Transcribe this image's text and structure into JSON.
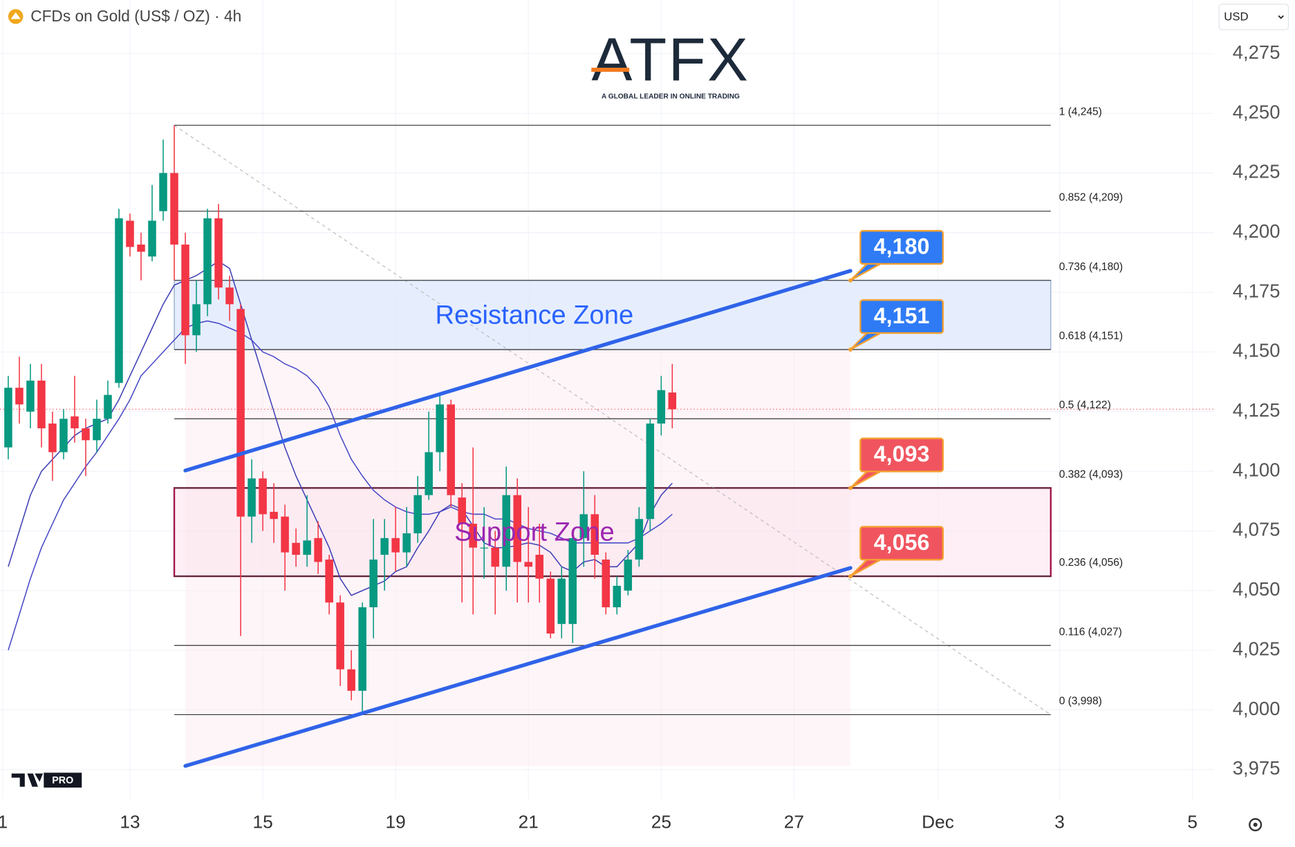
{
  "chart_data": {
    "type": "candlestick",
    "title": "CFDs on Gold (US$ / OZ) · 4h",
    "currency": "USD",
    "logo": {
      "name": "ATFX",
      "tagline": "A GLOBAL LEADER IN ONLINE TRADING"
    },
    "badge": "PRO",
    "up_color": "#089981",
    "down_color": "#f23645",
    "open": [
      4110,
      4135,
      4125,
      4138,
      4120,
      4108,
      4123,
      4118,
      4113,
      4122,
      4137,
      4205,
      4195,
      4190,
      4209,
      4225,
      4195,
      4157,
      4170,
      4206,
      4177,
      4168,
      4081,
      4097,
      4083,
      4081,
      4070,
      4065,
      4072,
      4063,
      4045,
      4017,
      4008,
      4043,
      4065,
      4072,
      4066,
      4074,
      4090,
      4108,
      4128,
      4089,
      4078,
      4068,
      4068,
      4060,
      4090,
      4062,
      4065,
      4055,
      4036,
      4036,
      4072,
      4082,
      4063,
      4043,
      4050,
      4063,
      4080,
      4120,
      4133
    ],
    "high": [
      4140,
      4148,
      4145,
      4145,
      4125,
      4126,
      4140,
      4122,
      4130,
      4138,
      4210,
      4208,
      4200,
      4220,
      4239,
      4245,
      4200,
      4180,
      4210,
      4212,
      4182,
      4170,
      4105,
      4100,
      4095,
      4086,
      4076,
      4090,
      4079,
      4065,
      4048,
      4025,
      4045,
      4080,
      4080,
      4085,
      4085,
      4098,
      4125,
      4132,
      4130,
      4095,
      4110,
      4085,
      4075,
      4102,
      4097,
      4085,
      4078,
      4058,
      4060,
      4075,
      4100,
      4090,
      4066,
      4056,
      4067,
      4085,
      4122,
      4140,
      4145
    ],
    "low": [
      4105,
      4120,
      4118,
      4110,
      4096,
      4105,
      4112,
      4098,
      4108,
      4120,
      4135,
      4190,
      4180,
      4188,
      4205,
      4180,
      4145,
      4150,
      4165,
      4172,
      4163,
      4031,
      4070,
      4075,
      4070,
      4050,
      4060,
      4060,
      4057,
      4040,
      4010,
      4004,
      3998,
      4030,
      4050,
      4058,
      4060,
      4070,
      4088,
      4100,
      4085,
      4045,
      4040,
      4055,
      4040,
      4050,
      4045,
      4045,
      4045,
      4030,
      4030,
      4028,
      4060,
      4055,
      4040,
      4040,
      4048,
      4060,
      4075,
      4115,
      4118
    ],
    "close": [
      4135,
      4128,
      4138,
      4118,
      4108,
      4122,
      4118,
      4113,
      4122,
      4132,
      4206,
      4194,
      4192,
      4205,
      4225,
      4195,
      4157,
      4170,
      4206,
      4177,
      4170,
      4081,
      4097,
      4082,
      4080,
      4066,
      4065,
      4071,
      4062,
      4045,
      4017,
      4008,
      4043,
      4063,
      4072,
      4066,
      4074,
      4090,
      4108,
      4128,
      4090,
      4078,
      4068,
      4068,
      4060,
      4090,
      4062,
      4060,
      4055,
      4032,
      4055,
      4072,
      4082,
      4065,
      4043,
      4052,
      4063,
      4080,
      4120,
      4134,
      4126
    ],
    "series": [
      {
        "color": "#3f3fb5",
        "values": [
          4060,
          4075,
          4090,
          4100,
          4105,
          4110,
          4115,
          4118,
          4120,
          4122,
          4130,
          4140,
          4150,
          4160,
          4170,
          4178,
          4180,
          4182,
          4185,
          4188,
          4185,
          4170,
          4155,
          4140,
          4125,
          4110,
          4098,
          4088,
          4078,
          4068,
          4055,
          4048,
          4050,
          4052,
          4054,
          4058,
          4060,
          4068,
          4075,
          4083,
          4086,
          4084,
          4077,
          4070,
          4068,
          4068,
          4069,
          4070,
          4069,
          4066,
          4060,
          4058,
          4062,
          4063,
          4060,
          4060,
          4065,
          4070,
          4082,
          4090,
          4095
        ]
      },
      {
        "color": "#4a4ac8",
        "values": [
          4025,
          4040,
          4055,
          4068,
          4078,
          4088,
          4095,
          4102,
          4108,
          4115,
          4122,
          4130,
          4140,
          4145,
          4150,
          4155,
          4160,
          4162,
          4163,
          4162,
          4160,
          4158,
          4155,
          4150,
          4148,
          4145,
          4143,
          4140,
          4135,
          4127,
          4115,
          4105,
          4098,
          4092,
          4088,
          4085,
          4083,
          4082,
          4082,
          4083,
          4085,
          4083,
          4082,
          4082,
          4080,
          4080,
          4078,
          4076,
          4075,
          4074,
          4072,
          4070,
          4070,
          4070,
          4070,
          4070,
          4070,
          4072,
          4075,
          4078,
          4082
        ]
      }
    ],
    "xlim": [
      -0.746,
      108.955
    ],
    "ylim": [
      3962.6,
      4297.5
    ],
    "xticks": [
      {
        "value": -0.5,
        "label": "1"
      },
      {
        "value": 11,
        "label": "13"
      },
      {
        "value": 23,
        "label": "15"
      },
      {
        "value": 35,
        "label": "19"
      },
      {
        "value": 47,
        "label": "21"
      },
      {
        "value": 59,
        "label": "25"
      },
      {
        "value": 71,
        "label": "27"
      },
      {
        "value": 84,
        "label": "Dec"
      },
      {
        "value": 95,
        "label": "3"
      },
      {
        "value": 107,
        "label": "5"
      }
    ],
    "yticks": [
      {
        "value": 3975,
        "label": "3,975"
      },
      {
        "value": 4000,
        "label": "4,000"
      },
      {
        "value": 4025,
        "label": "4,025"
      },
      {
        "value": 4050,
        "label": "4,050"
      },
      {
        "value": 4075,
        "label": "4,075"
      },
      {
        "value": 4100,
        "label": "4,100"
      },
      {
        "value": 4125,
        "label": "4,125"
      },
      {
        "value": 4150,
        "label": "4,150"
      },
      {
        "value": 4175,
        "label": "4,175"
      },
      {
        "value": 4200,
        "label": "4,200"
      },
      {
        "value": 4225,
        "label": "4,225"
      },
      {
        "value": 4250,
        "label": "4,250"
      },
      {
        "value": 4275,
        "label": "4,275"
      }
    ],
    "grid": true,
    "fibonacci": {
      "x_range": [
        15,
        94.2
      ],
      "levels": [
        {
          "value": 4245,
          "label": "1 (4,245)"
        },
        {
          "value": 4209,
          "label": "0.852 (4,209)"
        },
        {
          "value": 4180,
          "label": "0.736 (4,180)"
        },
        {
          "value": 4151,
          "label": "0.618 (4,151)"
        },
        {
          "value": 4122,
          "label": "0.5 (4,122)"
        },
        {
          "value": 4093,
          "label": "0.382 (4,093)"
        },
        {
          "value": 4056,
          "label": "0.236 (4,056)"
        },
        {
          "value": 4027,
          "label": "0.116 (4,027)"
        },
        {
          "value": 3998,
          "label": "0 (3,998)"
        }
      ]
    },
    "zones": [
      {
        "name": "Resistance Zone",
        "low": 4151,
        "high": 4180,
        "color": "#2962ff"
      },
      {
        "name": "Support Zone",
        "low": 4056,
        "high": 4093,
        "color": "#9c27b0"
      }
    ],
    "trendlines": [
      {
        "x": [
          16,
          76.1
        ],
        "y": [
          4100.3,
          4184
        ]
      },
      {
        "x": [
          16,
          76.1
        ],
        "y": [
          3976.5,
          4059.5
        ]
      }
    ],
    "callouts": [
      {
        "value": 4180,
        "label": "4,180",
        "color": "#2f7bf5"
      },
      {
        "value": 4151,
        "label": "4,151",
        "color": "#2f7bf5"
      },
      {
        "value": 4093,
        "label": "4,093",
        "color": "#f0555f"
      },
      {
        "value": 4056,
        "label": "4,056",
        "color": "#f0555f"
      }
    ]
  }
}
